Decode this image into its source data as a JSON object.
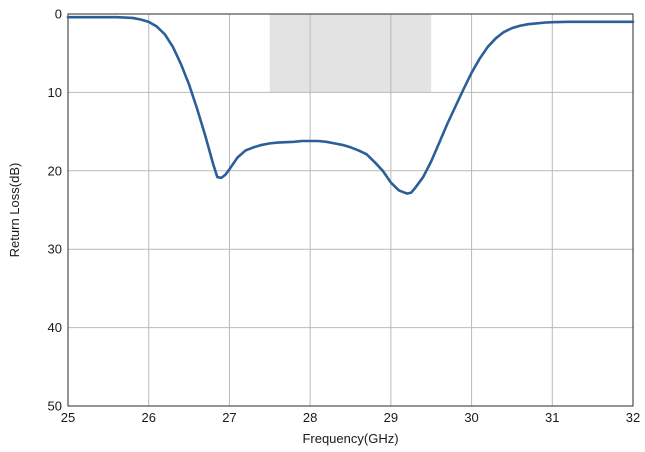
{
  "chart_data": {
    "type": "line",
    "title": "",
    "xlabel": "Frequency(GHz)",
    "ylabel": "Return Loss(dB)",
    "xlim": [
      25,
      32
    ],
    "ylim": [
      0,
      50
    ],
    "y_inverted": true,
    "grid": true,
    "legend": "none",
    "x_ticks": [
      "25",
      "26",
      "27",
      "28",
      "29",
      "30",
      "31",
      "32"
    ],
    "y_ticks": [
      "0",
      "10",
      "20",
      "30",
      "40",
      "50"
    ],
    "x_tick_values": [
      25,
      26,
      27,
      28,
      29,
      30,
      31,
      32
    ],
    "y_tick_values": [
      0,
      10,
      20,
      30,
      40,
      50
    ],
    "highlight_band": {
      "x": [
        27.5,
        29.5
      ],
      "y": [
        0,
        10
      ],
      "color": "#e3e3e3"
    },
    "series": [
      {
        "color": "#2b5f97",
        "x": [
          25.0,
          25.2,
          25.4,
          25.6,
          25.8,
          25.9,
          26.0,
          26.1,
          26.2,
          26.3,
          26.4,
          26.5,
          26.6,
          26.7,
          26.8,
          26.85,
          26.9,
          26.95,
          27.0,
          27.1,
          27.2,
          27.3,
          27.4,
          27.5,
          27.6,
          27.7,
          27.8,
          27.9,
          28.0,
          28.1,
          28.2,
          28.3,
          28.4,
          28.5,
          28.6,
          28.7,
          28.8,
          28.9,
          29.0,
          29.1,
          29.2,
          29.25,
          29.3,
          29.4,
          29.5,
          29.6,
          29.7,
          29.8,
          29.9,
          30.0,
          30.1,
          30.2,
          30.3,
          30.4,
          30.5,
          30.6,
          30.7,
          30.8,
          30.9,
          31.0,
          31.2,
          31.5,
          31.8,
          32.0
        ],
        "y": [
          0.4,
          0.4,
          0.4,
          0.4,
          0.5,
          0.7,
          1.0,
          1.6,
          2.6,
          4.2,
          6.4,
          9.0,
          12.1,
          15.5,
          19.2,
          20.8,
          20.9,
          20.5,
          19.8,
          18.3,
          17.4,
          17.0,
          16.7,
          16.5,
          16.4,
          16.35,
          16.3,
          16.2,
          16.2,
          16.2,
          16.3,
          16.5,
          16.7,
          17.0,
          17.4,
          17.9,
          18.9,
          20.0,
          21.5,
          22.5,
          22.9,
          22.8,
          22.2,
          20.8,
          18.8,
          16.4,
          14.0,
          11.8,
          9.6,
          7.5,
          5.7,
          4.2,
          3.1,
          2.3,
          1.8,
          1.5,
          1.3,
          1.2,
          1.1,
          1.05,
          1.0,
          1.0,
          1.0,
          1.0
        ]
      }
    ]
  }
}
